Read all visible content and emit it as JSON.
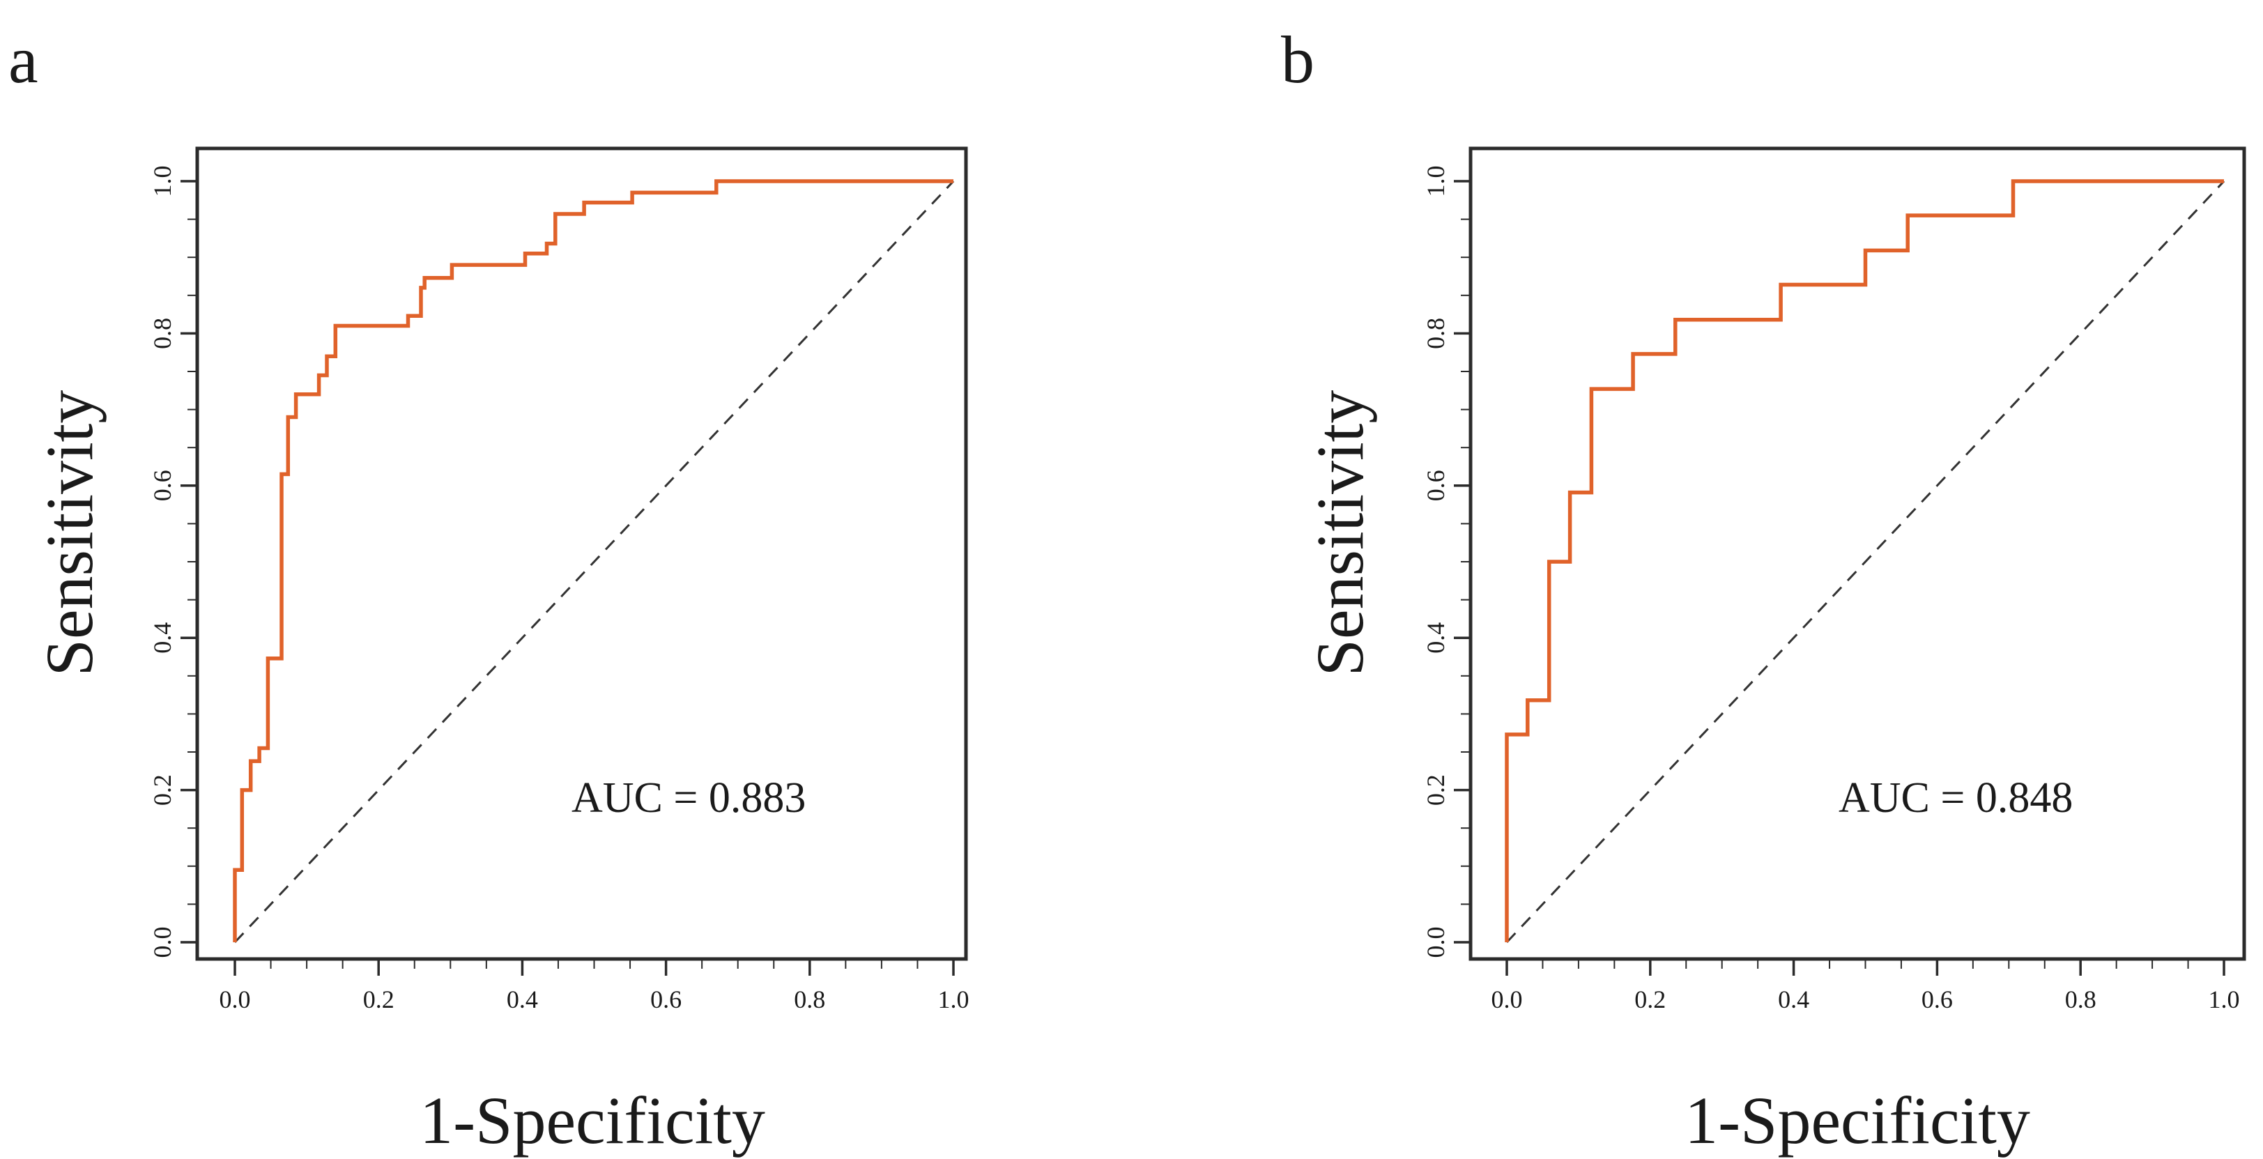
{
  "colors": {
    "roc_line": "#e0622a",
    "axis": "#2b2b2b",
    "diagonal": "#333333"
  },
  "chart_data": [
    {
      "type": "line",
      "panel_label": "a",
      "xlabel": "1-Specificity",
      "ylabel": "Sensitivity",
      "xlim": [
        0,
        1
      ],
      "ylim": [
        0,
        1
      ],
      "xticks": [
        "0.0",
        "0.2",
        "0.4",
        "0.6",
        "0.8",
        "1.0"
      ],
      "yticks": [
        "0.0",
        "0.2",
        "0.4",
        "0.6",
        "0.8",
        "1.0"
      ],
      "annotation": "AUC = 0.883",
      "reference_line": "dashed diagonal",
      "series": [
        {
          "name": "ROC",
          "points": [
            [
              0.0,
              0.0
            ],
            [
              0.0,
              0.095
            ],
            [
              0.01,
              0.095
            ],
            [
              0.01,
              0.2
            ],
            [
              0.022,
              0.2
            ],
            [
              0.022,
              0.238
            ],
            [
              0.034,
              0.238
            ],
            [
              0.034,
              0.255
            ],
            [
              0.046,
              0.255
            ],
            [
              0.046,
              0.373
            ],
            [
              0.065,
              0.373
            ],
            [
              0.065,
              0.615
            ],
            [
              0.074,
              0.615
            ],
            [
              0.074,
              0.69
            ],
            [
              0.085,
              0.69
            ],
            [
              0.085,
              0.72
            ],
            [
              0.117,
              0.72
            ],
            [
              0.117,
              0.745
            ],
            [
              0.128,
              0.745
            ],
            [
              0.128,
              0.77
            ],
            [
              0.14,
              0.77
            ],
            [
              0.14,
              0.81
            ],
            [
              0.241,
              0.81
            ],
            [
              0.241,
              0.823
            ],
            [
              0.259,
              0.823
            ],
            [
              0.259,
              0.86
            ],
            [
              0.264,
              0.86
            ],
            [
              0.264,
              0.873
            ],
            [
              0.302,
              0.873
            ],
            [
              0.302,
              0.89
            ],
            [
              0.404,
              0.89
            ],
            [
              0.404,
              0.905
            ],
            [
              0.434,
              0.905
            ],
            [
              0.434,
              0.918
            ],
            [
              0.446,
              0.918
            ],
            [
              0.446,
              0.957
            ],
            [
              0.486,
              0.957
            ],
            [
              0.486,
              0.972
            ],
            [
              0.553,
              0.972
            ],
            [
              0.553,
              0.985
            ],
            [
              0.67,
              0.985
            ],
            [
              0.67,
              1.0
            ],
            [
              1.0,
              1.0
            ]
          ]
        }
      ]
    },
    {
      "type": "line",
      "panel_label": "b",
      "xlabel": "1-Specificity",
      "ylabel": "Sensitivity",
      "xlim": [
        0,
        1
      ],
      "ylim": [
        0,
        1
      ],
      "xticks": [
        "0.0",
        "0.2",
        "0.4",
        "0.6",
        "0.8",
        "1.0"
      ],
      "yticks": [
        "0.0",
        "0.2",
        "0.4",
        "0.6",
        "0.8",
        "1.0"
      ],
      "annotation": "AUC = 0.848",
      "reference_line": "dashed diagonal",
      "series": [
        {
          "name": "ROC",
          "points": [
            [
              0.0,
              0.0
            ],
            [
              0.0,
              0.273
            ],
            [
              0.029,
              0.273
            ],
            [
              0.029,
              0.318
            ],
            [
              0.059,
              0.318
            ],
            [
              0.059,
              0.5
            ],
            [
              0.088,
              0.5
            ],
            [
              0.088,
              0.591
            ],
            [
              0.118,
              0.591
            ],
            [
              0.118,
              0.727
            ],
            [
              0.176,
              0.727
            ],
            [
              0.176,
              0.773
            ],
            [
              0.235,
              0.773
            ],
            [
              0.235,
              0.818
            ],
            [
              0.382,
              0.818
            ],
            [
              0.382,
              0.864
            ],
            [
              0.5,
              0.864
            ],
            [
              0.5,
              0.909
            ],
            [
              0.559,
              0.909
            ],
            [
              0.559,
              0.955
            ],
            [
              0.706,
              0.955
            ],
            [
              0.706,
              1.0
            ],
            [
              1.0,
              1.0
            ]
          ]
        }
      ]
    }
  ]
}
